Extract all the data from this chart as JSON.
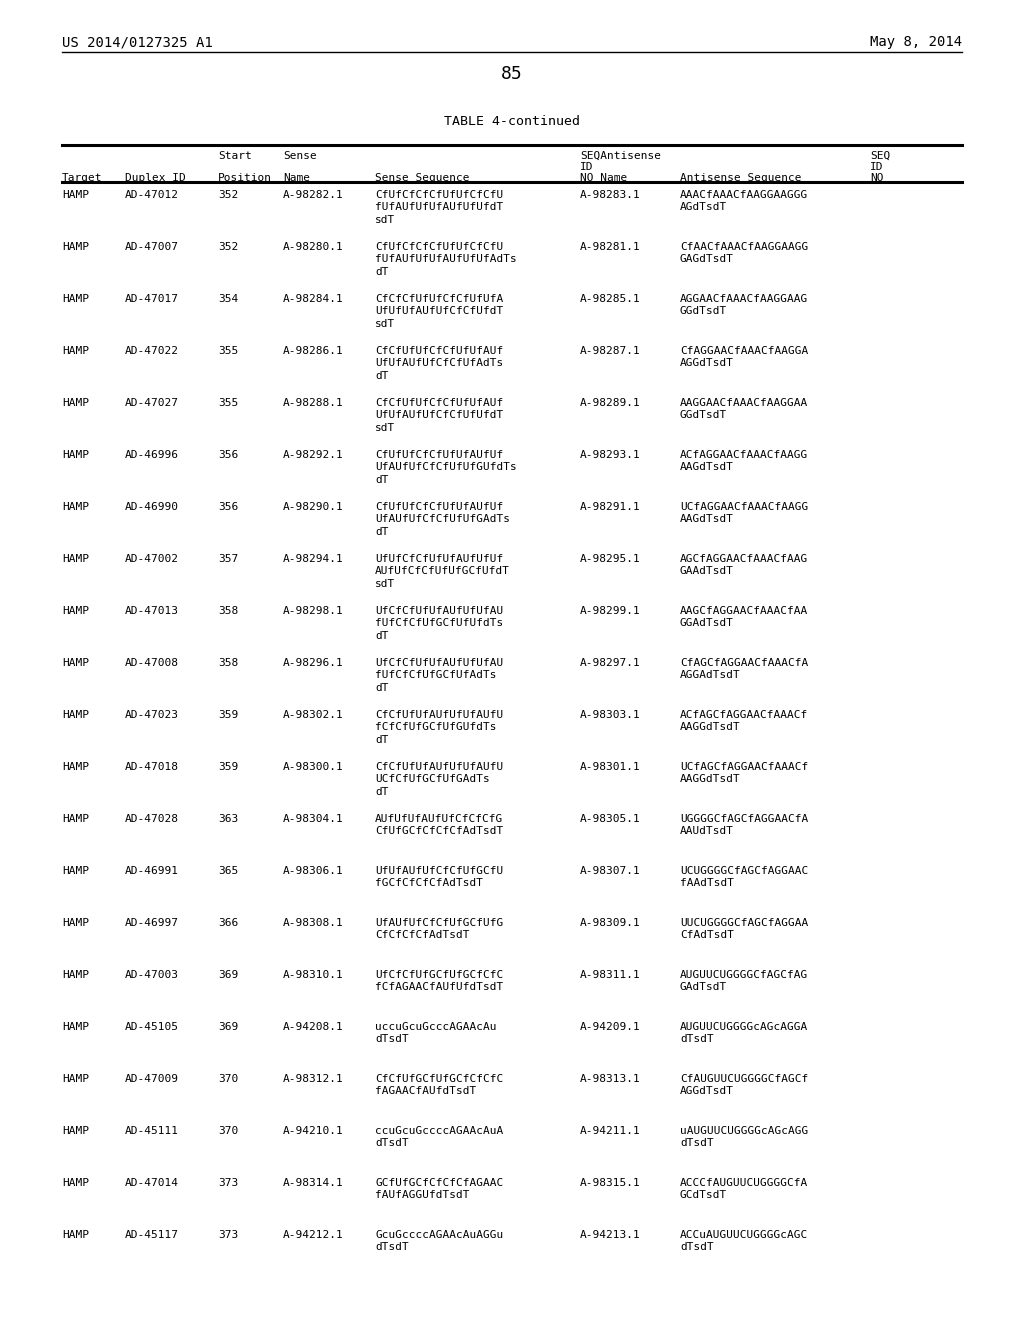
{
  "header_left": "US 2014/0127325 A1",
  "header_right": "May 8, 2014",
  "page_number": "85",
  "table_title": "TABLE 4-continued",
  "bg_color": "#ffffff",
  "text_color": "#000000",
  "rows": [
    [
      "HAMP",
      "AD-47012",
      "352",
      "A-98282.1",
      "CfUfCfCfCfUfUfCfCfU\nfUfAUfUfUfAUfUfUfdT\nsdT",
      "A-98283.1",
      "AAACfAAACfAAGGAAGGG\nAGdTsdT"
    ],
    [
      "HAMP",
      "AD-47007",
      "352",
      "A-98280.1",
      "CfUfCfCfCfUfUfCfCfU\nfUfAUfUfUfAUfUfUfAdTs\ndT",
      "A-98281.1",
      "CfAACfAAACfAAGGAAGG\nGAGdTsdT"
    ],
    [
      "HAMP",
      "AD-47017",
      "354",
      "A-98284.1",
      "CfCfCfUfUfCfCfUfUfA\nUfUfUfAUfUfCfCfUfdT\nsdT",
      "A-98285.1",
      "AGGAACfAAACfAAGGAAG\nGGdTsdT"
    ],
    [
      "HAMP",
      "AD-47022",
      "355",
      "A-98286.1",
      "CfCfUfUfCfCfUfUfAUf\nUfUfAUfUfCfCfUfAdTs\ndT",
      "A-98287.1",
      "CfAGGAACfAAACfAAGGA\nAGGdTsdT"
    ],
    [
      "HAMP",
      "AD-47027",
      "355",
      "A-98288.1",
      "CfCfUfUfCfCfUfUfAUf\nUfUfAUfUfCfCfUfUfdT\nsdT",
      "A-98289.1",
      "AAGGAACfAAACfAAGGAA\nGGdTsdT"
    ],
    [
      "HAMP",
      "AD-46996",
      "356",
      "A-98292.1",
      "CfUfUfCfCfUfUfAUfUf\nUfAUfUfCfCfUfUfGUfdTs\ndT",
      "A-98293.1",
      "ACfAGGAACfAAACfAAGG\nAAGdTsdT"
    ],
    [
      "HAMP",
      "AD-46990",
      "356",
      "A-98290.1",
      "CfUfUfCfCfUfUfAUfUf\nUfAUfUfCfCfUfUfGAdTs\ndT",
      "A-98291.1",
      "UCfAGGAACfAAACfAAGG\nAAGdTsdT"
    ],
    [
      "HAMP",
      "AD-47002",
      "357",
      "A-98294.1",
      "UfUfCfCfUfUfAUfUfUf\nAUfUfCfCfUfUfGCfUfdT\nsdT",
      "A-98295.1",
      "AGCfAGGAACfAAACfAAG\nGAAdTsdT"
    ],
    [
      "HAMP",
      "AD-47013",
      "358",
      "A-98298.1",
      "UfCfCfUfUfAUfUfUfAU\nfUfCfCfUfGCfUfUfdTs\ndT",
      "A-98299.1",
      "AAGCfAGGAACfAAACfAA\nGGAdTsdT"
    ],
    [
      "HAMP",
      "AD-47008",
      "358",
      "A-98296.1",
      "UfCfCfUfUfAUfUfUfAU\nfUfCfCfUfGCfUfAdTs\ndT",
      "A-98297.1",
      "CfAGCfAGGAACfAAACfA\nAGGAdTsdT"
    ],
    [
      "HAMP",
      "AD-47023",
      "359",
      "A-98302.1",
      "CfCfUfUfAUfUfUfAUfU\nfCfCfUfGCfUfGUfdTs\ndT",
      "A-98303.1",
      "ACfAGCfAGGAACfAAACf\nAAGGdTsdT"
    ],
    [
      "HAMP",
      "AD-47018",
      "359",
      "A-98300.1",
      "CfCfUfUfAUfUfUfAUfU\nUCfCfUfGCfUfGAdTs\ndT",
      "A-98301.1",
      "UCfAGCfAGGAACfAAACf\nAAGGdTsdT"
    ],
    [
      "HAMP",
      "AD-47028",
      "363",
      "A-98304.1",
      "AUfUfUfAUfUfCfCfCfG\nCfUfGCfCfCfCfAdTsdT",
      "A-98305.1",
      "UGGGGCfAGCfAGGAACfA\nAAUdTsdT"
    ],
    [
      "HAMP",
      "AD-46991",
      "365",
      "A-98306.1",
      "UfUfAUfUfCfCfUfGCfU\nfGCfCfCfCfAdTsdT",
      "A-98307.1",
      "UCUGGGGCfAGCfAGGAAC\nfAAdTsdT"
    ],
    [
      "HAMP",
      "AD-46997",
      "366",
      "A-98308.1",
      "UfAUfUfCfCfUfGCfUfG\nCfCfCfCfAdTsdT",
      "A-98309.1",
      "UUCUGGGGCfAGCfAGGAA\nCfAdTsdT"
    ],
    [
      "HAMP",
      "AD-47003",
      "369",
      "A-98310.1",
      "UfCfCfUfGCfUfGCfCfC\nfCfAGAACfAUfUfdTsdT",
      "A-98311.1",
      "AUGUUCUGGGGCfAGCfAG\nGAdTsdT"
    ],
    [
      "HAMP",
      "AD-45105",
      "369",
      "A-94208.1",
      "uccuGcuGcccAGAAcAu\ndTsdT",
      "A-94209.1",
      "AUGUUCUGGGGcAGcAGGA\ndTsdT"
    ],
    [
      "HAMP",
      "AD-47009",
      "370",
      "A-98312.1",
      "CfCfUfGCfUfGCfCfCfC\nfAGAACfAUfdTsdT",
      "A-98313.1",
      "CfAUGUUCUGGGGCfAGCf\nAGGdTsdT"
    ],
    [
      "HAMP",
      "AD-45111",
      "370",
      "A-94210.1",
      "ccuGcuGccccAGAAcAuA\ndTsdT",
      "A-94211.1",
      "uAUGUUCUGGGGcAGcAGG\ndTsdT"
    ],
    [
      "HAMP",
      "AD-47014",
      "373",
      "A-98314.1",
      "GCfUfGCfCfCfCfAGAAC\nfAUfAGGUfdTsdT",
      "A-98315.1",
      "ACCCfAUGUUCUGGGGCfA\nGCdTsdT"
    ],
    [
      "HAMP",
      "AD-45117",
      "373",
      "A-94212.1",
      "GcuGccccAGAAcAuAGGu\ndTsdT",
      "A-94213.1",
      "ACCuAUGUUCUGGGGcAGC\ndTsdT"
    ]
  ]
}
